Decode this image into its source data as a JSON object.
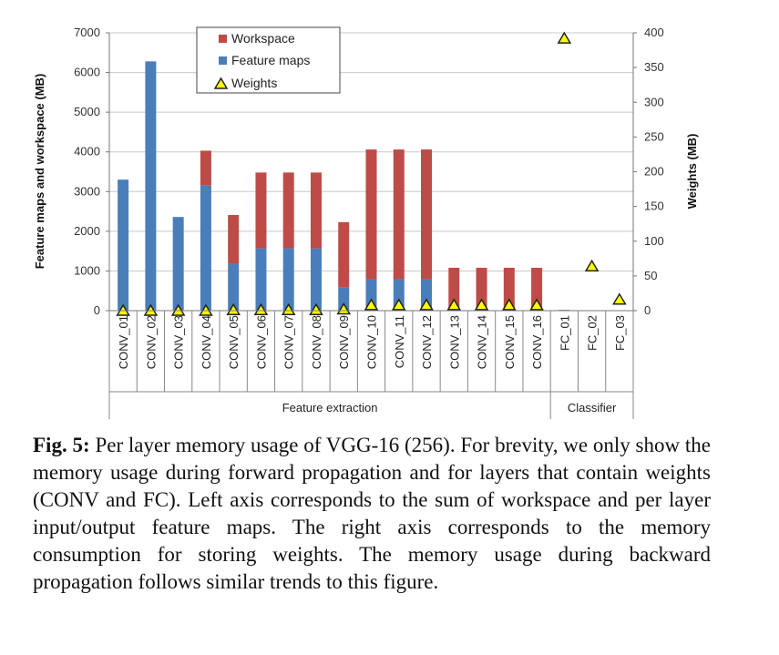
{
  "chart_data": {
    "type": "bar",
    "stacked": true,
    "categories": [
      "CONV_01",
      "CONV_02",
      "CONV_03",
      "CONV_04",
      "CONV_05",
      "CONV_06",
      "CONV_07",
      "CONV_08",
      "CONV_09",
      "CONV_10",
      "CONV_11",
      "CONV_12",
      "CONV_13",
      "CONV_14",
      "CONV_15",
      "CONV_16",
      "FC_01",
      "FC_02",
      "FC_03"
    ],
    "series": [
      {
        "name": "Feature maps",
        "axis": "left",
        "color": "#4a7ebb",
        "values": [
          3300,
          6280,
          2360,
          3150,
          1180,
          1570,
          1570,
          1570,
          580,
          790,
          790,
          790,
          0,
          0,
          0,
          0,
          20,
          5,
          5
        ]
      },
      {
        "name": "Workspace",
        "axis": "left",
        "color": "#be4b48",
        "values": [
          0,
          0,
          0,
          880,
          1230,
          1910,
          1910,
          1910,
          1650,
          3270,
          3270,
          3270,
          1080,
          1080,
          1080,
          1080,
          0,
          0,
          0
        ]
      },
      {
        "name": "Weights",
        "axis": "right",
        "type": "marker",
        "marker": "triangle",
        "color": "#ffff00",
        "values": [
          0,
          0,
          0,
          0,
          1,
          1,
          1,
          1,
          2,
          8,
          8,
          8,
          8,
          8,
          8,
          8,
          392,
          64,
          16
        ]
      }
    ],
    "ylabel": "Feature maps and workspace (MB)",
    "ylim": [
      0,
      7000
    ],
    "yticks": [
      0,
      1000,
      2000,
      3000,
      4000,
      5000,
      6000,
      7000
    ],
    "y2label": "Weights (MB)",
    "y2lim": [
      0,
      400
    ],
    "y2ticks": [
      0,
      50,
      100,
      150,
      200,
      250,
      300,
      350,
      400
    ],
    "groups": [
      {
        "label": "Feature extraction",
        "from": 0,
        "to": 15
      },
      {
        "label": "Classifier",
        "from": 16,
        "to": 18
      }
    ],
    "legend": [
      "Workspace",
      "Feature maps",
      "Weights"
    ],
    "legend_position": "top-center",
    "grid": true
  },
  "caption": {
    "label": "Fig. 5:",
    "text": "Per layer memory usage of VGG-16 (256). For brevity, we only show the memory usage during forward propagation and for layers that contain weights (CONV and FC). Left axis corresponds to the sum of workspace and per layer input/output feature maps. The right axis corresponds to the memory consumption for storing weights. The memory usage during backward propagation follows similar trends to this figure."
  }
}
